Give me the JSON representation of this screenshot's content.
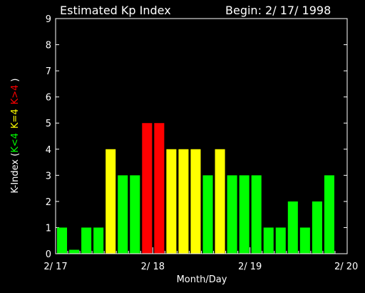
{
  "chart_data": {
    "type": "bar",
    "title": "Estimated Kp Index",
    "subtitle": "Begin: 2/ 17/ 1998",
    "xlabel": "Month/Day",
    "ylabel_prefix": "K-Index (",
    "ylabel_green": "K<4",
    "ylabel_yellow": "K=4",
    "ylabel_red": "K>4",
    "ylabel_suffix": ")",
    "ylim": [
      0,
      9
    ],
    "yticks": [
      "0",
      "1",
      "2",
      "3",
      "4",
      "5",
      "6",
      "7",
      "8",
      "9"
    ],
    "xticks": [
      "2/ 17",
      "2/ 18",
      "2/ 19",
      "2/ 20"
    ],
    "bars_per_day": 8,
    "days": 3,
    "values": [
      1,
      0.15,
      1,
      1,
      4,
      3,
      3,
      5,
      5,
      4,
      4,
      4,
      3,
      4,
      3,
      3,
      3,
      1,
      1,
      2,
      1,
      2,
      3
    ],
    "colors": {
      "below": "#00ff00",
      "equal": "#ffff00",
      "above": "#ff0000",
      "axis": "#ffffff",
      "background": "#000000"
    }
  }
}
